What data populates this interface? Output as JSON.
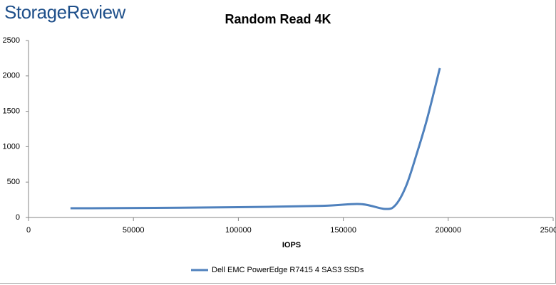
{
  "logo": "StorageReview",
  "chart_data": {
    "type": "line",
    "title": "Random Read 4K",
    "x_label": "IOPS",
    "x": [
      20000,
      60000,
      100000,
      140000,
      158000,
      170000,
      175000,
      180000,
      185000,
      190000,
      196000
    ],
    "series": [
      {
        "name": "Dell EMC PowerEdge R7415 4 SAS3 SSDs",
        "color": "#4f81bd",
        "values": [
          130,
          135,
          145,
          165,
          190,
          120,
          180,
          450,
          900,
          1400,
          2110
        ]
      }
    ],
    "xlim": [
      0,
      250000
    ],
    "xticks": [
      0,
      50000,
      100000,
      150000,
      200000,
      250000
    ],
    "ylim": [
      0,
      2500
    ],
    "yticks": [
      0,
      500,
      1000,
      1500,
      2000,
      2500
    ],
    "grid": false,
    "legend": "bottom"
  }
}
